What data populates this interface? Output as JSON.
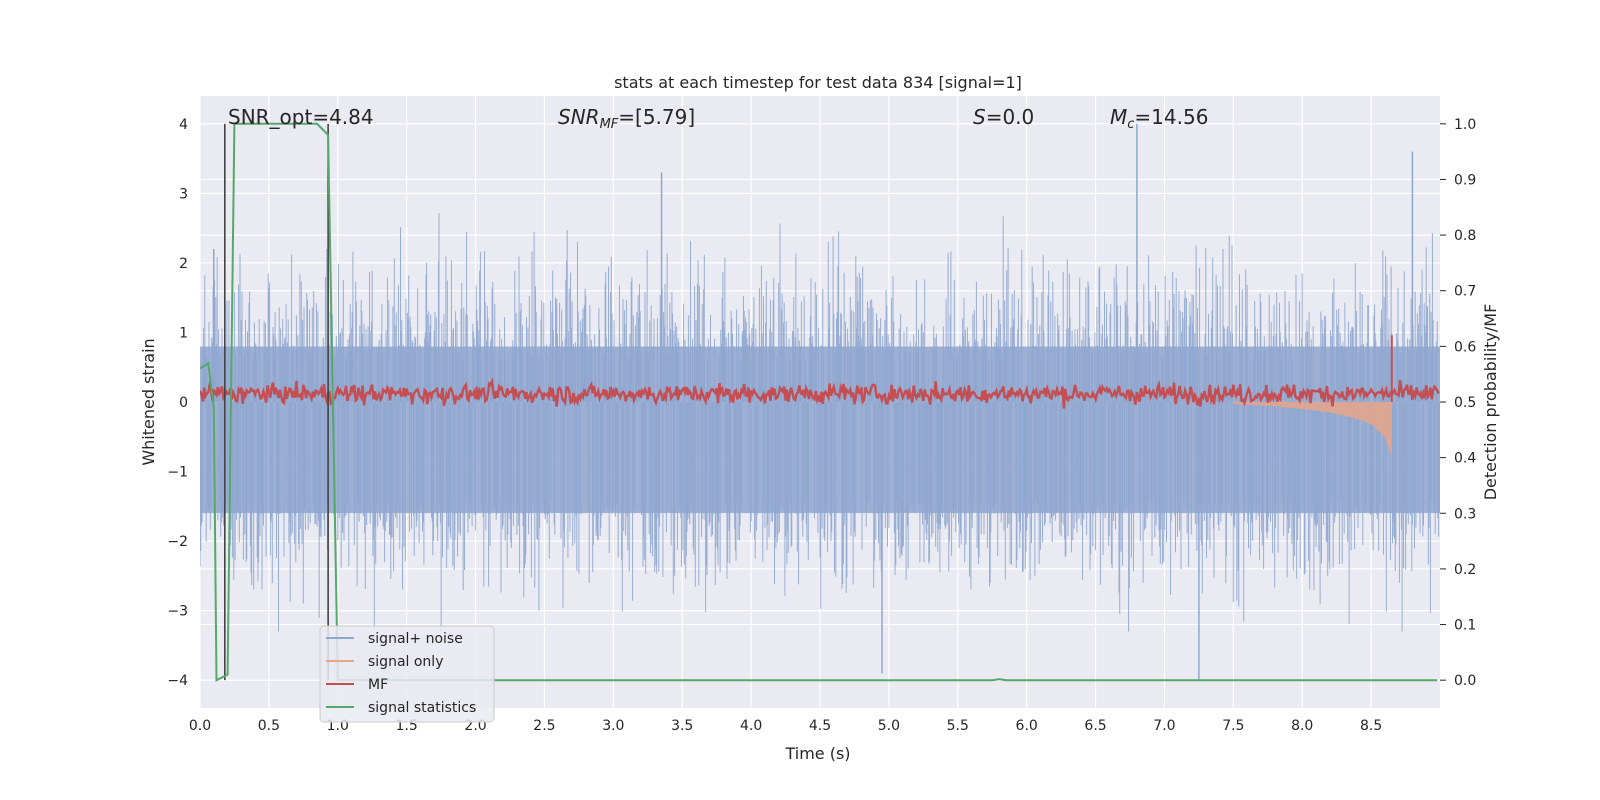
{
  "chart_data": {
    "type": "line",
    "title": "stats at each timestep for test data 834 [signal=1]",
    "xlabel": "Time (s)",
    "ylabel_left": "Whitened strain",
    "ylabel_right": "Detection probability/MF",
    "xlim": [
      0,
      9.0
    ],
    "ylim_left": [
      -4.4,
      4.4
    ],
    "ylim_right": [
      -0.05,
      1.05
    ],
    "xticks": [
      "0.0",
      "0.5",
      "1.0",
      "1.5",
      "2.0",
      "2.5",
      "3.0",
      "3.5",
      "4.0",
      "4.5",
      "5.0",
      "5.5",
      "6.0",
      "6.5",
      "7.0",
      "7.5",
      "8.0",
      "8.5"
    ],
    "xtick_values": [
      0,
      0.5,
      1,
      1.5,
      2,
      2.5,
      3,
      3.5,
      4,
      4.5,
      5,
      5.5,
      6,
      6.5,
      7,
      7.5,
      8,
      8.5
    ],
    "yticks_left": [
      "−4",
      "−3",
      "−2",
      "−1",
      "0",
      "1",
      "2",
      "3",
      "4"
    ],
    "ytick_values_left": [
      -4,
      -3,
      -2,
      -1,
      0,
      1,
      2,
      3,
      4
    ],
    "yticks_right": [
      "0.0",
      "0.1",
      "0.2",
      "0.3",
      "0.4",
      "0.5",
      "0.6",
      "0.7",
      "0.8",
      "0.9",
      "1.0"
    ],
    "ytick_values_right": [
      0,
      0.1,
      0.2,
      0.3,
      0.4,
      0.5,
      0.6,
      0.7,
      0.8,
      0.9,
      1.0
    ],
    "grid": true,
    "legend_placement": "lower-left",
    "annotations": {
      "snr_opt": "SNR_opt=4.84",
      "snr_mf_name": "SNR",
      "snr_mf_sub": "MF",
      "snr_mf_value": "=[5.79]",
      "s_name": "S",
      "s_value": "=0.0",
      "mc_name": "M",
      "mc_sub": "c",
      "mc_value": "=14.56"
    },
    "series": [
      {
        "name": "signal+ noise",
        "color": "#8fa6cf",
        "axis": "left",
        "description_values": {
          "typical_range": [
            -2.5,
            2.5
          ],
          "max": 4.0,
          "min": -4.0
        }
      },
      {
        "name": "signal only",
        "color": "#e8a58a",
        "axis": "left",
        "x": [
          7.5,
          7.8,
          8.0,
          8.2,
          8.4,
          8.5,
          8.6,
          8.65
        ],
        "envelope": [
          0.03,
          0.06,
          0.1,
          0.15,
          0.24,
          0.32,
          0.5,
          0.8
        ]
      },
      {
        "name": "MF",
        "color": "#c44e52",
        "axis": "right",
        "typical_range": [
          0.5,
          0.54
        ],
        "spike": {
          "x": 8.65,
          "y": 0.62
        }
      },
      {
        "name": "signal statistics",
        "color": "#55a868",
        "axis": "right",
        "x": [
          0.0,
          0.06,
          0.1,
          0.12,
          0.2,
          0.25,
          0.85,
          0.93,
          1.0,
          1.05,
          5.75,
          5.8,
          5.85,
          8.98
        ],
        "y": [
          0.56,
          0.57,
          0.49,
          0.0,
          0.01,
          1.0,
          1.0,
          0.98,
          0.0,
          0.0,
          0.0,
          0.002,
          0.0,
          0.0
        ]
      }
    ],
    "vertical_lines_x": [
      0.18,
      0.93
    ]
  },
  "legend": [
    {
      "label": "signal+ noise",
      "color": "#8fa6cf"
    },
    {
      "label": "signal only",
      "color": "#e8a58a"
    },
    {
      "label": "MF",
      "color": "#c44e52"
    },
    {
      "label": "signal statistics",
      "color": "#55a868"
    }
  ]
}
